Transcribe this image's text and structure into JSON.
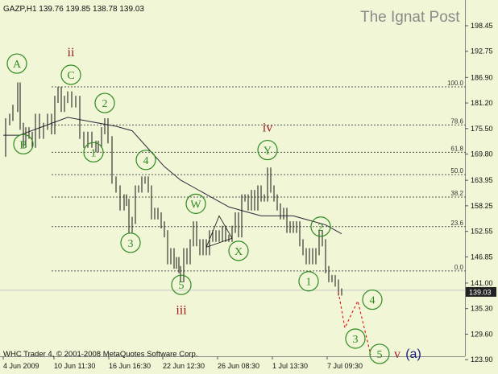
{
  "header": {
    "symbol_text": "GAZP,H1  139.76 139.85 138.78 139.03",
    "watermark": "The Ignat Post"
  },
  "footer": {
    "copyright": "WHC Trader 4, © 2001-2008 MetaQuotes Software Corp."
  },
  "colors": {
    "background": "#f1f6d6",
    "label_green": "#2f8a21",
    "label_red": "#9b1a1a",
    "label_navy": "#1d1d7a",
    "price_line": "#999999",
    "fib_line": "#555555",
    "projection": "#e02020"
  },
  "chart_data": {
    "type": "line",
    "title": "",
    "symbol": "GAZP",
    "timeframe": "H1",
    "ohlc": {
      "open": 139.76,
      "high": 139.85,
      "low": 138.78,
      "close": 139.03
    },
    "current_price": 139.03,
    "y_ticks": [
      198.45,
      192.75,
      186.9,
      181.2,
      175.5,
      169.8,
      163.95,
      158.25,
      152.55,
      146.85,
      141.0,
      135.3,
      129.6,
      123.9
    ],
    "y_tick_labels": [
      "198.45",
      "192.75",
      "186.90",
      "181.20",
      "175.50",
      "169.80",
      "163.95",
      "158.25",
      "152.55",
      "146.85",
      "141.00",
      "135.30",
      "129.60",
      "123.90"
    ],
    "ylim": [
      122.5,
      201.5
    ],
    "x_labels": [
      {
        "t": 0,
        "label": "4 Jun 2009"
      },
      {
        "t": 63,
        "label": "10 Jun 11:30"
      },
      {
        "t": 131,
        "label": "16 Jun 16:30"
      },
      {
        "t": 198,
        "label": "22 Jun 12:30"
      },
      {
        "t": 266,
        "label": "26 Jun 08:30"
      },
      {
        "t": 334,
        "label": "1 Jul 13:30"
      },
      {
        "t": 402,
        "label": "7 Jul 09:30"
      }
    ],
    "price_path": [
      [
        0,
        170
      ],
      [
        3,
        177
      ],
      [
        8,
        178
      ],
      [
        12,
        180
      ],
      [
        18,
        185
      ],
      [
        21,
        176
      ],
      [
        25,
        172
      ],
      [
        28,
        175
      ],
      [
        32,
        174
      ],
      [
        36,
        172
      ],
      [
        40,
        178
      ],
      [
        45,
        174
      ],
      [
        50,
        176
      ],
      [
        55,
        178
      ],
      [
        60,
        175
      ],
      [
        64,
        182
      ],
      [
        68,
        184
      ],
      [
        72,
        180
      ],
      [
        76,
        182
      ],
      [
        80,
        183
      ],
      [
        85,
        181
      ],
      [
        90,
        182
      ],
      [
        95,
        174
      ],
      [
        100,
        172
      ],
      [
        105,
        174
      ],
      [
        110,
        172
      ],
      [
        115,
        171
      ],
      [
        118,
        172
      ],
      [
        122,
        175
      ],
      [
        126,
        177
      ],
      [
        130,
        173
      ],
      [
        135,
        164
      ],
      [
        140,
        162
      ],
      [
        145,
        158
      ],
      [
        150,
        160
      ],
      [
        153,
        159
      ],
      [
        156,
        153
      ],
      [
        160,
        155
      ],
      [
        164,
        162
      ],
      [
        168,
        162
      ],
      [
        172,
        164
      ],
      [
        176,
        164
      ],
      [
        180,
        162
      ],
      [
        184,
        156
      ],
      [
        188,
        157
      ],
      [
        192,
        156
      ],
      [
        196,
        154
      ],
      [
        200,
        152
      ],
      [
        204,
        146
      ],
      [
        208,
        148
      ],
      [
        212,
        145
      ],
      [
        215,
        146
      ],
      [
        218,
        144
      ],
      [
        220,
        142
      ],
      [
        224,
        148
      ],
      [
        228,
        146
      ],
      [
        232,
        150
      ],
      [
        236,
        154
      ],
      [
        240,
        150
      ],
      [
        244,
        148
      ],
      [
        248,
        150
      ],
      [
        252,
        148
      ],
      [
        256,
        152
      ],
      [
        260,
        151
      ],
      [
        264,
        152
      ],
      [
        268,
        151
      ],
      [
        272,
        153
      ],
      [
        276,
        151
      ],
      [
        280,
        151
      ],
      [
        284,
        153
      ],
      [
        288,
        156
      ],
      [
        292,
        152
      ],
      [
        296,
        160
      ],
      [
        300,
        160
      ],
      [
        304,
        158
      ],
      [
        308,
        161
      ],
      [
        312,
        158
      ],
      [
        316,
        162
      ],
      [
        320,
        160
      ],
      [
        324,
        160
      ],
      [
        328,
        166
      ],
      [
        332,
        162
      ],
      [
        336,
        160
      ],
      [
        340,
        158
      ],
      [
        344,
        156
      ],
      [
        348,
        157
      ],
      [
        352,
        153
      ],
      [
        356,
        154
      ],
      [
        360,
        153
      ],
      [
        364,
        154
      ],
      [
        368,
        150
      ],
      [
        372,
        148
      ],
      [
        376,
        146
      ],
      [
        380,
        148
      ],
      [
        384,
        146
      ],
      [
        388,
        148
      ],
      [
        392,
        152
      ],
      [
        396,
        150
      ],
      [
        400,
        144
      ],
      [
        404,
        142
      ],
      [
        408,
        142
      ],
      [
        412,
        141
      ],
      [
        416,
        139
      ],
      [
        420,
        139
      ]
    ],
    "ma_path": [
      [
        0,
        174
      ],
      [
        20,
        174
      ],
      [
        50,
        176
      ],
      [
        80,
        178
      ],
      [
        110,
        177
      ],
      [
        140,
        176
      ],
      [
        160,
        175
      ],
      [
        180,
        171
      ],
      [
        200,
        167
      ],
      [
        220,
        164
      ],
      [
        240,
        162
      ],
      [
        260,
        160
      ],
      [
        280,
        158
      ],
      [
        300,
        157
      ],
      [
        320,
        156
      ],
      [
        340,
        156
      ],
      [
        360,
        156
      ],
      [
        380,
        155
      ],
      [
        400,
        154
      ],
      [
        420,
        152
      ]
    ],
    "fib_levels": [
      {
        "label": "100.0",
        "value": 184.8
      },
      {
        "label": "78.6",
        "value": 176.3
      },
      {
        "label": "61.8",
        "value": 170.2
      },
      {
        "label": "50.0",
        "value": 165.2
      },
      {
        "label": "38.2",
        "value": 160.2
      },
      {
        "label": "23.6",
        "value": 153.6
      },
      {
        "label": "0.0",
        "value": 143.7
      }
    ],
    "hline_value": 139.4,
    "projection_path": [
      [
        416,
        139
      ],
      [
        424,
        131
      ],
      [
        440,
        137
      ],
      [
        456,
        125
      ]
    ],
    "wave_labels": [
      {
        "text": "A",
        "style": "circle",
        "t": 17,
        "p": 190.0
      },
      {
        "text": "B",
        "style": "circle",
        "t": 25,
        "p": 172.0
      },
      {
        "text": "C",
        "style": "circle",
        "t": 84,
        "p": 187.5
      },
      {
        "text": "ii",
        "style": "roman",
        "t": 84,
        "p": 192.5
      },
      {
        "text": "2",
        "style": "circle",
        "t": 126,
        "p": 181.2
      },
      {
        "text": "1",
        "style": "circle",
        "t": 112,
        "p": 170.2
      },
      {
        "text": "4",
        "style": "circle",
        "t": 177,
        "p": 168.5
      },
      {
        "text": "3",
        "style": "circle",
        "t": 158,
        "p": 150.0
      },
      {
        "text": "W",
        "style": "circle",
        "t": 239,
        "p": 158.7
      },
      {
        "text": "X",
        "style": "circle",
        "t": 292,
        "p": 148.2
      },
      {
        "text": "5",
        "style": "circle",
        "t": 221,
        "p": 140.6
      },
      {
        "text": "iii",
        "style": "roman",
        "t": 221,
        "p": 135.0
      },
      {
        "text": "Y",
        "style": "circle",
        "t": 328,
        "p": 170.7
      },
      {
        "text": "iv",
        "style": "roman",
        "t": 328,
        "p": 175.7
      },
      {
        "text": "2",
        "style": "circle",
        "t": 394,
        "p": 153.6
      },
      {
        "text": "1",
        "style": "circle",
        "t": 379,
        "p": 141.4
      },
      {
        "text": "4",
        "style": "circle",
        "t": 458,
        "p": 137.3
      },
      {
        "text": "3",
        "style": "circle",
        "t": 437,
        "p": 128.6
      },
      {
        "text": "5",
        "style": "circle",
        "t": 467,
        "p": 125.2
      },
      {
        "text": "v",
        "style": "roman",
        "t": 489,
        "p": 125.2
      },
      {
        "text": "(a)",
        "style": "navy",
        "t": 509,
        "p": 125.2
      }
    ]
  }
}
